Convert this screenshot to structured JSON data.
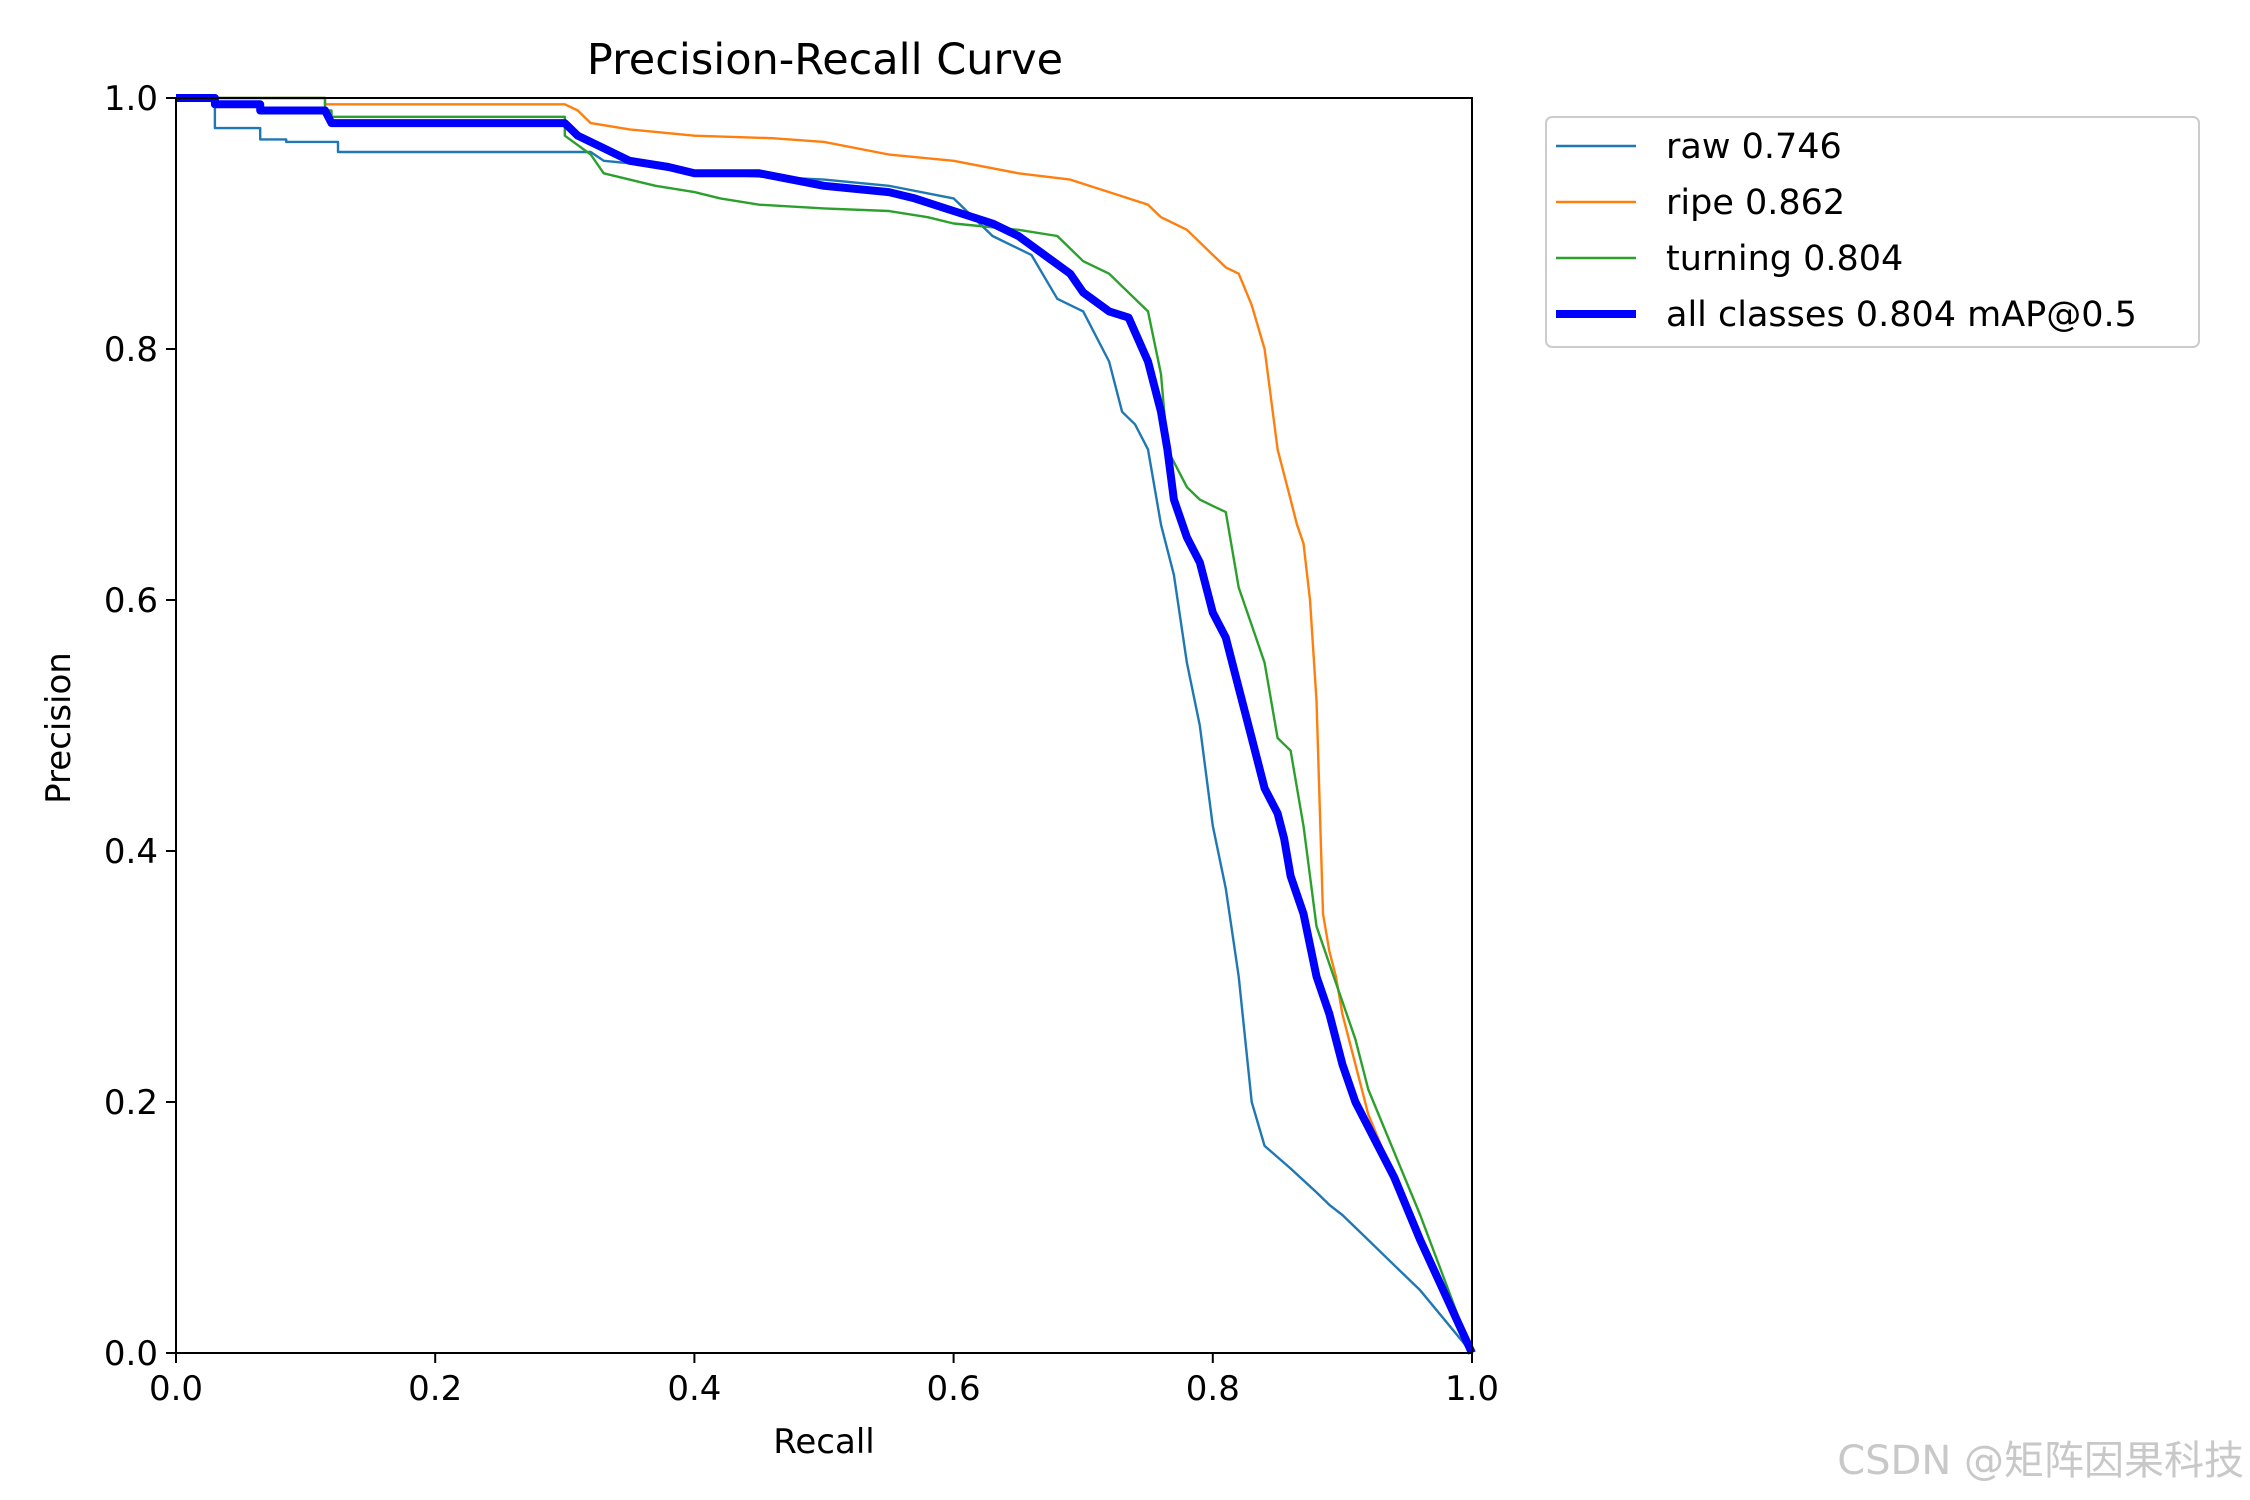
{
  "chart_data": {
    "type": "line",
    "title": "Precision-Recall Curve",
    "xlabel": "Recall",
    "ylabel": "Precision",
    "xlim": [
      0,
      1
    ],
    "ylim": [
      0,
      1
    ],
    "xticks": [
      "0.0",
      "0.2",
      "0.4",
      "0.6",
      "0.8",
      "1.0"
    ],
    "yticks": [
      "0.0",
      "0.2",
      "0.4",
      "0.6",
      "0.8",
      "1.0"
    ],
    "grid": false,
    "legend_position": "outside-upper-right",
    "series": [
      {
        "name": "raw 0.746",
        "color": "#1f77b4",
        "x": [
          0,
          0.03,
          0.03,
          0.065,
          0.065,
          0.085,
          0.085,
          0.125,
          0.125,
          0.32,
          0.33,
          0.38,
          0.4,
          0.5,
          0.55,
          0.6,
          0.63,
          0.66,
          0.68,
          0.7,
          0.72,
          0.73,
          0.74,
          0.75,
          0.76,
          0.77,
          0.78,
          0.79,
          0.8,
          0.81,
          0.82,
          0.83,
          0.84,
          0.86,
          0.88,
          0.89,
          0.9,
          0.92,
          0.94,
          0.96,
          1.0
        ],
        "y": [
          1.0,
          1.0,
          0.976,
          0.976,
          0.967,
          0.967,
          0.965,
          0.965,
          0.957,
          0.957,
          0.95,
          0.945,
          0.94,
          0.935,
          0.93,
          0.92,
          0.89,
          0.875,
          0.84,
          0.83,
          0.79,
          0.75,
          0.74,
          0.72,
          0.66,
          0.62,
          0.55,
          0.5,
          0.42,
          0.37,
          0.3,
          0.2,
          0.165,
          0.147,
          0.128,
          0.118,
          0.11,
          0.09,
          0.07,
          0.05,
          0.0
        ]
      },
      {
        "name": "ripe 0.862",
        "color": "#ff7f0e",
        "x": [
          0,
          0.115,
          0.115,
          0.3,
          0.31,
          0.32,
          0.35,
          0.4,
          0.46,
          0.5,
          0.55,
          0.6,
          0.65,
          0.69,
          0.72,
          0.75,
          0.76,
          0.78,
          0.79,
          0.8,
          0.81,
          0.82,
          0.83,
          0.84,
          0.85,
          0.855,
          0.86,
          0.865,
          0.87,
          0.875,
          0.88,
          0.885,
          0.89,
          0.895,
          0.9,
          0.91,
          0.92,
          0.94,
          0.96,
          0.98,
          1.0
        ],
        "y": [
          1.0,
          1.0,
          0.995,
          0.995,
          0.99,
          0.98,
          0.975,
          0.97,
          0.968,
          0.965,
          0.955,
          0.95,
          0.94,
          0.935,
          0.925,
          0.915,
          0.905,
          0.895,
          0.885,
          0.875,
          0.865,
          0.86,
          0.835,
          0.8,
          0.72,
          0.7,
          0.68,
          0.66,
          0.645,
          0.6,
          0.52,
          0.35,
          0.32,
          0.3,
          0.27,
          0.23,
          0.19,
          0.14,
          0.09,
          0.045,
          0.0
        ]
      },
      {
        "name": "turning 0.804",
        "color": "#2ca02c",
        "x": [
          0,
          0.115,
          0.115,
          0.12,
          0.12,
          0.3,
          0.3,
          0.32,
          0.33,
          0.35,
          0.37,
          0.4,
          0.42,
          0.45,
          0.5,
          0.55,
          0.58,
          0.6,
          0.65,
          0.68,
          0.7,
          0.72,
          0.75,
          0.76,
          0.765,
          0.77,
          0.78,
          0.79,
          0.8,
          0.81,
          0.82,
          0.83,
          0.84,
          0.85,
          0.855,
          0.86,
          0.87,
          0.875,
          0.88,
          0.89,
          0.9,
          0.91,
          0.92,
          0.94,
          0.96,
          0.98,
          1.0
        ],
        "y": [
          1.0,
          1.0,
          0.99,
          0.99,
          0.985,
          0.985,
          0.97,
          0.955,
          0.94,
          0.935,
          0.93,
          0.925,
          0.92,
          0.915,
          0.912,
          0.91,
          0.905,
          0.9,
          0.895,
          0.89,
          0.87,
          0.86,
          0.83,
          0.78,
          0.72,
          0.71,
          0.69,
          0.68,
          0.675,
          0.67,
          0.61,
          0.58,
          0.55,
          0.49,
          0.485,
          0.48,
          0.42,
          0.38,
          0.34,
          0.31,
          0.28,
          0.25,
          0.21,
          0.16,
          0.11,
          0.055,
          0.0
        ]
      },
      {
        "name": "all classes 0.804 mAP@0.5",
        "color": "#0000ff",
        "x": [
          0,
          0.03,
          0.03,
          0.065,
          0.065,
          0.115,
          0.12,
          0.3,
          0.31,
          0.33,
          0.35,
          0.38,
          0.4,
          0.45,
          0.5,
          0.55,
          0.57,
          0.6,
          0.63,
          0.65,
          0.67,
          0.69,
          0.7,
          0.72,
          0.735,
          0.75,
          0.76,
          0.765,
          0.77,
          0.78,
          0.79,
          0.8,
          0.81,
          0.82,
          0.83,
          0.84,
          0.85,
          0.855,
          0.86,
          0.87,
          0.88,
          0.89,
          0.895,
          0.9,
          0.91,
          0.92,
          0.94,
          0.96,
          0.98,
          1.0
        ],
        "y": [
          1.0,
          1.0,
          0.995,
          0.995,
          0.99,
          0.99,
          0.98,
          0.98,
          0.97,
          0.96,
          0.95,
          0.945,
          0.94,
          0.94,
          0.93,
          0.925,
          0.92,
          0.91,
          0.9,
          0.89,
          0.875,
          0.86,
          0.845,
          0.83,
          0.825,
          0.79,
          0.75,
          0.72,
          0.68,
          0.65,
          0.63,
          0.59,
          0.57,
          0.53,
          0.49,
          0.45,
          0.43,
          0.41,
          0.38,
          0.35,
          0.3,
          0.27,
          0.25,
          0.23,
          0.2,
          0.18,
          0.14,
          0.09,
          0.045,
          0.0
        ]
      }
    ]
  },
  "watermark": "CSDN @矩阵因果科技"
}
